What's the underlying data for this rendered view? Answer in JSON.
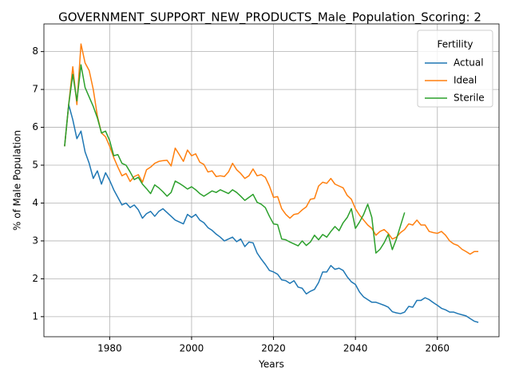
{
  "chart_data": {
    "type": "line",
    "title": "GOVERNMENT_SUPPORT_NEW_PRODUCTS_Male_Population_Scoring: 2",
    "xlabel": "Years",
    "ylabel": "% of Male Population",
    "legend_title": "Fertility",
    "legend": "upper right",
    "grid": true,
    "x": [
      1969,
      1970,
      1971,
      1972,
      1973,
      1974,
      1975,
      1976,
      1977,
      1978,
      1979,
      1980,
      1981,
      1982,
      1983,
      1984,
      1985,
      1986,
      1987,
      1988,
      1989,
      1990,
      1991,
      1992,
      1993,
      1994,
      1995,
      1996,
      1997,
      1998,
      1999,
      2000,
      2001,
      2002,
      2003,
      2004,
      2005,
      2006,
      2007,
      2008,
      2009,
      2010,
      2011,
      2012,
      2013,
      2014,
      2015,
      2016,
      2017,
      2018,
      2019,
      2020,
      2021,
      2022,
      2023,
      2024,
      2025,
      2026,
      2027,
      2028,
      2029,
      2030,
      2031,
      2032,
      2033,
      2034,
      2035,
      2036,
      2037,
      2038,
      2039,
      2040,
      2041,
      2042,
      2043,
      2044,
      2045,
      2046,
      2047,
      2048,
      2049,
      2050,
      2051,
      2052,
      2053,
      2054,
      2055,
      2056,
      2057,
      2058,
      2059,
      2060,
      2061,
      2062,
      2063,
      2064,
      2065,
      2066,
      2067,
      2068,
      2069,
      2070
    ],
    "series": [
      {
        "name": "Actual",
        "color": "#1f77b4",
        "values": [
          5.5,
          6.6,
          6.2,
          5.7,
          5.9,
          5.35,
          5.05,
          4.65,
          4.85,
          4.5,
          4.8,
          4.6,
          4.35,
          4.15,
          3.95,
          4.0,
          3.88,
          3.95,
          3.82,
          3.6,
          3.72,
          3.78,
          3.65,
          3.78,
          3.85,
          3.75,
          3.65,
          3.55,
          3.5,
          3.45,
          3.7,
          3.62,
          3.7,
          3.55,
          3.48,
          3.35,
          3.28,
          3.18,
          3.1,
          3.0,
          3.05,
          3.1,
          2.98,
          3.05,
          2.85,
          2.97,
          2.95,
          2.68,
          2.52,
          2.38,
          2.22,
          2.18,
          2.12,
          1.97,
          1.95,
          1.88,
          1.95,
          1.78,
          1.75,
          1.6,
          1.67,
          1.72,
          1.9,
          2.18,
          2.18,
          2.35,
          2.25,
          2.28,
          2.22,
          2.05,
          1.92,
          1.85,
          1.65,
          1.52,
          1.45,
          1.38,
          1.38,
          1.34,
          1.3,
          1.25,
          1.13,
          1.1,
          1.08,
          1.12,
          1.27,
          1.25,
          1.43,
          1.43,
          1.5,
          1.45,
          1.37,
          1.3,
          1.22,
          1.18,
          1.12,
          1.12,
          1.08,
          1.05,
          1.02,
          0.95,
          0.88,
          0.85
        ]
      },
      {
        "name": "Ideal",
        "color": "#ff7f0e",
        "values": [
          5.5,
          6.6,
          7.6,
          6.6,
          8.2,
          7.7,
          7.5,
          7.0,
          6.3,
          5.85,
          5.75,
          5.5,
          5.2,
          4.95,
          4.72,
          4.78,
          4.57,
          4.7,
          4.75,
          4.55,
          4.88,
          4.95,
          5.05,
          5.1,
          5.12,
          5.13,
          4.98,
          5.45,
          5.28,
          5.1,
          5.4,
          5.25,
          5.3,
          5.08,
          5.02,
          4.82,
          4.85,
          4.7,
          4.72,
          4.7,
          4.82,
          5.05,
          4.88,
          4.78,
          4.65,
          4.72,
          4.9,
          4.72,
          4.75,
          4.68,
          4.45,
          4.15,
          4.17,
          3.85,
          3.7,
          3.6,
          3.7,
          3.72,
          3.82,
          3.9,
          4.1,
          4.12,
          4.45,
          4.55,
          4.52,
          4.65,
          4.5,
          4.45,
          4.4,
          4.2,
          4.1,
          3.85,
          3.68,
          3.55,
          3.42,
          3.33,
          3.15,
          3.25,
          3.3,
          3.2,
          3.05,
          3.1,
          3.22,
          3.3,
          3.45,
          3.42,
          3.55,
          3.42,
          3.42,
          3.25,
          3.22,
          3.2,
          3.25,
          3.15,
          3.0,
          2.92,
          2.88,
          2.78,
          2.72,
          2.65,
          2.72,
          2.72
        ]
      },
      {
        "name": "Sterile",
        "color": "#2ca02c",
        "values": [
          5.5,
          6.6,
          7.4,
          6.7,
          7.65,
          7.05,
          6.8,
          6.55,
          6.25,
          5.85,
          5.9,
          5.65,
          5.25,
          5.28,
          5.05,
          5.0,
          4.82,
          4.62,
          4.68,
          4.5,
          4.38,
          4.25,
          4.48,
          4.4,
          4.3,
          4.18,
          4.28,
          4.58,
          4.52,
          4.45,
          4.37,
          4.43,
          4.35,
          4.25,
          4.18,
          4.25,
          4.32,
          4.28,
          4.35,
          4.3,
          4.25,
          4.35,
          4.28,
          4.18,
          4.07,
          4.15,
          4.23,
          4.02,
          3.97,
          3.88,
          3.65,
          3.45,
          3.43,
          3.05,
          3.03,
          2.97,
          2.92,
          2.87,
          3.0,
          2.88,
          2.97,
          3.15,
          3.03,
          3.17,
          3.1,
          3.25,
          3.38,
          3.27,
          3.48,
          3.62,
          3.85,
          3.33,
          3.5,
          3.7,
          3.97,
          3.62,
          2.68,
          2.78,
          2.95,
          3.17,
          2.77,
          3.05,
          3.4,
          3.75,
          null,
          null,
          null,
          null,
          null,
          null,
          null,
          null,
          null,
          null,
          null,
          null,
          null,
          null,
          null,
          null,
          null,
          null
        ]
      }
    ],
    "xlim": [
      1963.95,
      2075.05
    ],
    "xticks": [
      1980,
      2000,
      2020,
      2040,
      2060
    ],
    "ylim": [
      0.47,
      8.73
    ],
    "yticks": [
      1,
      2,
      3,
      4,
      5,
      6,
      7,
      8
    ]
  }
}
